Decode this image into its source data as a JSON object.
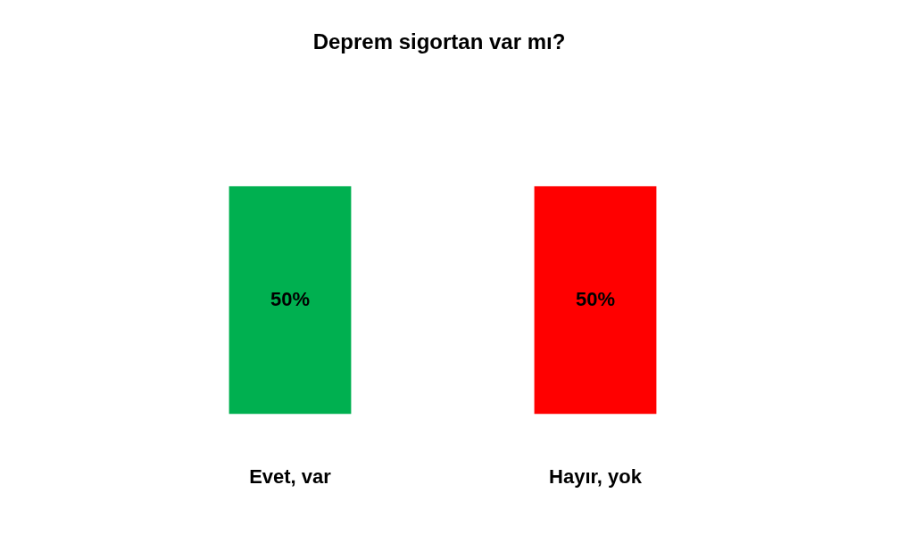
{
  "chart_data": {
    "type": "bar",
    "title": "Deprem sigortan var mı?",
    "categories": [
      "Evet, var",
      "Hayır, yok"
    ],
    "values": [
      50,
      50
    ],
    "colors": [
      "#00b050",
      "#ff0000"
    ],
    "value_labels": [
      "50%",
      "50%"
    ],
    "tick_labels": "x",
    "grid": false,
    "legend": false
  }
}
